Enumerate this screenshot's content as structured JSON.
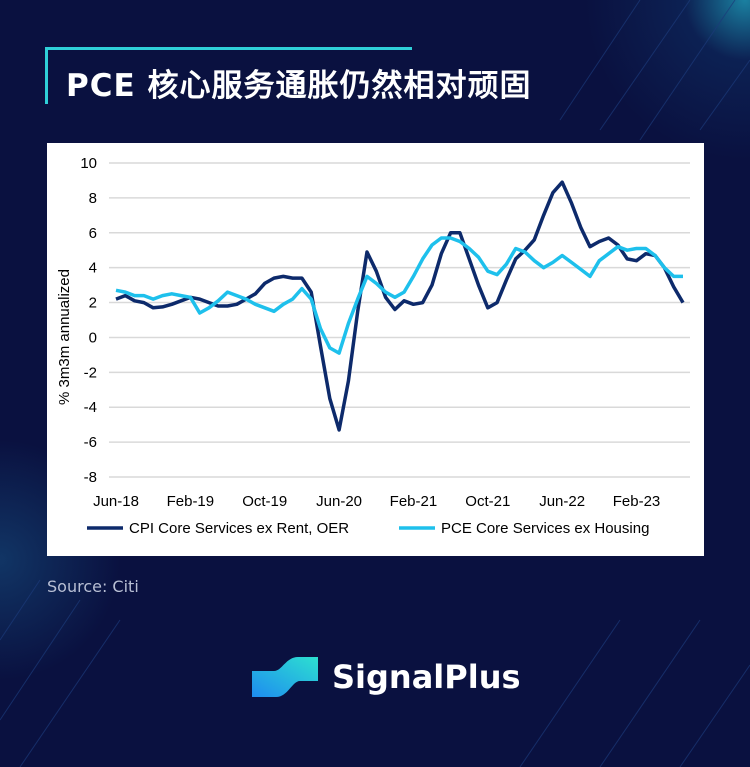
{
  "title": "PCE 核心服务通胀仍然相对顽固",
  "source": "Source: Citi",
  "brand": {
    "name": "SignalPlus"
  },
  "colors": {
    "background": "#0a1140",
    "accent": "#2fd0d8",
    "cpi": "#0d2a6b",
    "pce": "#1ec0ec"
  },
  "chart_data": {
    "type": "line",
    "ylabel": "% 3m3m annualized",
    "xlabel": "",
    "ylim": [
      -8,
      10
    ],
    "yticks": [
      "10",
      "8",
      "6",
      "4",
      "2",
      "0",
      "-2",
      "-4",
      "-6",
      "-8"
    ],
    "xticks": [
      "Jun-18",
      "Feb-19",
      "Oct-19",
      "Jun-20",
      "Feb-21",
      "Oct-21",
      "Jun-22",
      "Feb-23"
    ],
    "x_start": "Jun-18",
    "x_end": "Jul-23",
    "frequency": "monthly",
    "grid": true,
    "legend": "bottom",
    "series": [
      {
        "name": "CPI Core Services ex Rent, OER",
        "color": "#0d2a6b",
        "values": [
          2.2,
          2.4,
          2.1,
          2.0,
          1.7,
          1.75,
          1.9,
          2.1,
          2.3,
          2.2,
          2.0,
          1.8,
          1.8,
          1.9,
          2.2,
          2.5,
          3.1,
          3.4,
          3.5,
          3.4,
          3.4,
          2.6,
          -0.5,
          -3.5,
          -5.3,
          -2.5,
          1.5,
          4.9,
          3.8,
          2.3,
          1.6,
          2.1,
          1.9,
          2.0,
          3.0,
          4.8,
          6.0,
          6.0,
          4.5,
          3.0,
          1.7,
          2.0,
          3.3,
          4.5,
          5.0,
          5.6,
          7.0,
          8.3,
          8.9,
          7.7,
          6.3,
          5.2,
          5.5,
          5.7,
          5.3,
          4.5,
          4.4,
          4.8,
          4.7,
          4.0,
          2.9,
          2.0
        ]
      },
      {
        "name": "PCE Core Services ex Housing",
        "color": "#1ec0ec",
        "values": [
          2.7,
          2.6,
          2.4,
          2.4,
          2.2,
          2.4,
          2.5,
          2.4,
          2.3,
          1.4,
          1.7,
          2.1,
          2.6,
          2.4,
          2.2,
          1.9,
          1.7,
          1.5,
          1.9,
          2.2,
          2.8,
          2.2,
          0.5,
          -0.6,
          -0.9,
          0.8,
          2.2,
          3.5,
          3.1,
          2.6,
          2.3,
          2.6,
          3.5,
          4.5,
          5.3,
          5.7,
          5.7,
          5.5,
          5.1,
          4.6,
          3.8,
          3.6,
          4.2,
          5.1,
          4.9,
          4.4,
          4.0,
          4.3,
          4.7,
          4.3,
          3.9,
          3.5,
          4.4,
          4.8,
          5.2,
          5.0,
          5.1,
          5.1,
          4.7,
          4.0,
          3.5,
          3.5
        ]
      }
    ]
  }
}
